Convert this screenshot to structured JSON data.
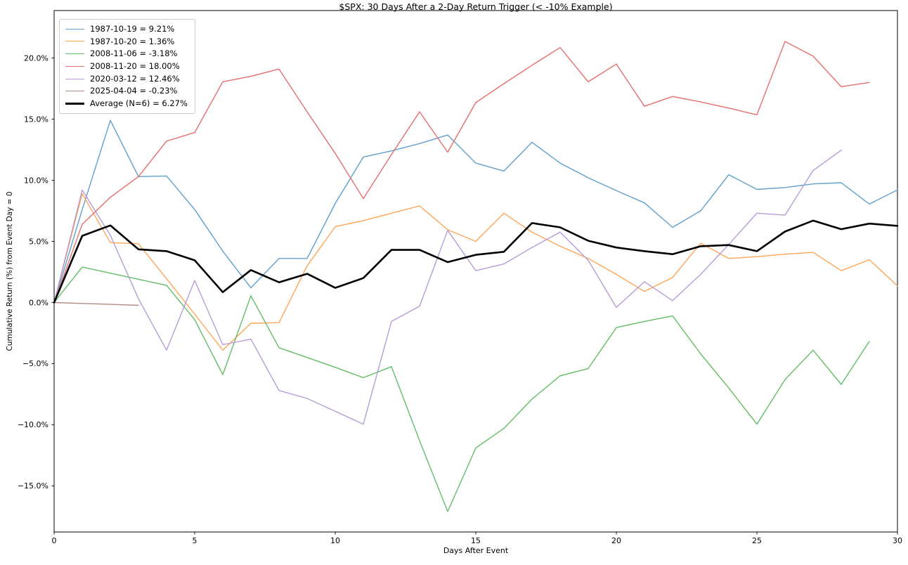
{
  "chart_data": {
    "type": "line",
    "title": "$SPX: 30 Days After a 2-Day Return Trigger (< -10% Example)",
    "xlabel": "Days After Event",
    "ylabel": "Cumulative Return (%) from Event Day = 0",
    "grid": false,
    "legend_position": "upper left",
    "xlim": [
      0,
      30
    ],
    "ylim": [
      -18.77,
      23.88
    ],
    "x_ticks": [
      {
        "value": 0,
        "label": "0"
      },
      {
        "value": 5,
        "label": "5"
      },
      {
        "value": 10,
        "label": "10"
      },
      {
        "value": 15,
        "label": "15"
      },
      {
        "value": 20,
        "label": "20"
      },
      {
        "value": 25,
        "label": "25"
      },
      {
        "value": 30,
        "label": "30"
      }
    ],
    "y_ticks": [
      {
        "value": 20,
        "label": "20.0%"
      },
      {
        "value": 15,
        "label": "15.0%"
      },
      {
        "value": 10,
        "label": "10.0%"
      },
      {
        "value": 5,
        "label": "5.0%"
      },
      {
        "value": 0,
        "label": "0.0%"
      },
      {
        "value": -5,
        "label": "−5.0%"
      },
      {
        "value": -10,
        "label": "−10.0%"
      },
      {
        "value": -15,
        "label": "−15.0%"
      }
    ],
    "series": [
      {
        "name": "1987-10-19 = 9.21%",
        "color": "#619fcc",
        "line_width": 1.4,
        "values": [
          0,
          7.6,
          14.9,
          10.3,
          10.35,
          7.6,
          4.2,
          1.2,
          3.6,
          3.6,
          8.1,
          11.9,
          12.4,
          13.0,
          13.7,
          11.4,
          10.75,
          13.1,
          11.4,
          10.2,
          9.15,
          8.15,
          6.15,
          7.5,
          10.45,
          9.25,
          9.4,
          9.7,
          9.8,
          8.05,
          9.21
        ]
      },
      {
        "name": "1987-10-20 = 1.36%",
        "color": "#ffa556",
        "line_width": 1.4,
        "values": [
          0,
          8.9,
          4.9,
          4.8,
          1.95,
          -0.95,
          -3.9,
          -1.7,
          -1.65,
          3.0,
          6.2,
          6.7,
          7.3,
          7.9,
          5.95,
          5.0,
          7.3,
          5.75,
          4.6,
          3.6,
          2.3,
          0.9,
          2.05,
          4.85,
          3.6,
          3.75,
          3.95,
          4.1,
          2.6,
          3.5,
          1.36
        ]
      },
      {
        "name": "2008-11-06 = -3.18%",
        "color": "#63bd66",
        "line_width": 1.4,
        "values": [
          0,
          2.9,
          2.4,
          1.9,
          1.4,
          -1.4,
          -5.9,
          0.55,
          -3.7,
          -4.5,
          -5.3,
          -6.15,
          -5.25,
          -11.3,
          -17.1,
          -11.9,
          -10.3,
          -7.9,
          -6.0,
          -5.4,
          -2.05,
          -1.55,
          -1.1,
          -4.2,
          -7.0,
          -9.95,
          -6.3,
          -3.9,
          -6.7,
          -3.18
        ]
      },
      {
        "name": "2008-11-20 = 18.00%",
        "color": "#e66e6e",
        "line_width": 1.4,
        "values": [
          0,
          6.4,
          8.6,
          10.3,
          13.2,
          13.9,
          18.05,
          18.5,
          19.1,
          15.6,
          12.2,
          8.5,
          12.1,
          15.6,
          12.3,
          16.35,
          17.9,
          19.4,
          20.85,
          18.05,
          19.5,
          16.05,
          16.85,
          16.4,
          15.9,
          15.35,
          21.35,
          20.15,
          17.65,
          18.0
        ]
      },
      {
        "name": "2020-03-12 = 12.46%",
        "color": "#b79bd8",
        "line_width": 1.4,
        "values": [
          0,
          9.2,
          5.5,
          0.3,
          -3.9,
          1.8,
          -3.45,
          -3.0,
          -7.2,
          -7.85,
          -8.9,
          -9.95,
          -1.55,
          -0.3,
          5.9,
          2.6,
          3.15,
          4.5,
          5.75,
          3.45,
          -0.4,
          1.7,
          0.15,
          2.3,
          4.75,
          7.3,
          7.15,
          10.8,
          12.46
        ]
      },
      {
        "name": "2025-04-04 = -0.23%",
        "color": "#b18d86",
        "line_width": 1.4,
        "values": [
          0,
          -0.08,
          -0.15,
          -0.23
        ]
      },
      {
        "name": "Average (N=6) = 6.27%",
        "color": "#000000",
        "line_width": 2.6,
        "values": [
          0,
          5.45,
          6.3,
          4.35,
          4.2,
          3.45,
          0.85,
          2.65,
          1.65,
          2.35,
          1.2,
          2.0,
          4.3,
          4.3,
          3.3,
          3.9,
          4.15,
          6.5,
          6.15,
          5.05,
          4.5,
          4.2,
          3.95,
          4.6,
          4.7,
          4.2,
          5.8,
          6.7,
          6.0,
          6.45,
          6.27
        ]
      }
    ]
  }
}
